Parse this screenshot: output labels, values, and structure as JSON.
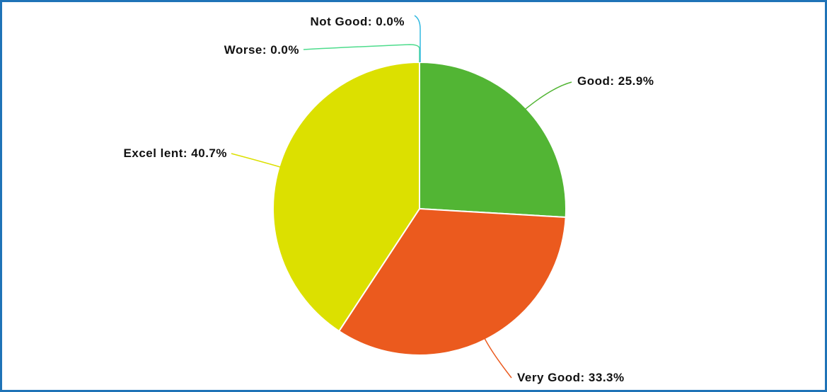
{
  "chart_data": {
    "type": "pie",
    "categories": [
      "Good",
      "Very Good",
      "Excellent",
      "Worse",
      "Not Good"
    ],
    "values": [
      25.9,
      33.3,
      40.7,
      0.0,
      0.0
    ],
    "labels": [
      "Good: 25.9%",
      "Very Good: 33.3%",
      "Excel lent: 40.7%",
      "Worse: 0.0%",
      "Not Good: 0.0%"
    ],
    "colors": [
      "#52b534",
      "#eb5a1e",
      "#dce000",
      "#4ddc8c",
      "#30b8e0"
    ],
    "slice_order": "clockwise from top",
    "border_color": "#1f73b7"
  }
}
